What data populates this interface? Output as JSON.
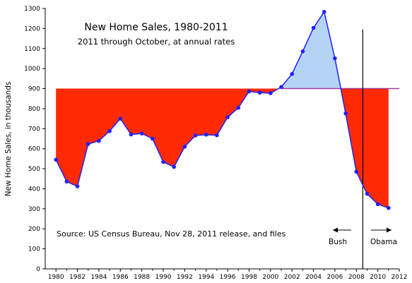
{
  "chart_data": {
    "type": "line",
    "title": "New Home Sales, 1980-2011",
    "subtitle": "2011 through October, at annual rates",
    "xlabel": "",
    "ylabel": "New Home Sales, in thousands",
    "xlim": [
      1979,
      2012
    ],
    "ylim": [
      0,
      1300
    ],
    "x_ticks": [
      1980,
      1982,
      1984,
      1986,
      1988,
      1990,
      1992,
      1994,
      1996,
      1998,
      2000,
      2002,
      2004,
      2006,
      2008,
      2010,
      2012
    ],
    "y_ticks": [
      0,
      100,
      200,
      300,
      400,
      500,
      600,
      700,
      800,
      900,
      1000,
      1100,
      1200,
      1300
    ],
    "x": [
      1980,
      1981,
      1982,
      1983,
      1984,
      1985,
      1986,
      1987,
      1988,
      1989,
      1990,
      1991,
      1992,
      1993,
      1994,
      1995,
      1996,
      1997,
      1998,
      1999,
      2000,
      2001,
      2002,
      2003,
      2004,
      2005,
      2006,
      2007,
      2008,
      2009,
      2010,
      2011
    ],
    "values": [
      545,
      436,
      412,
      623,
      639,
      688,
      750,
      671,
      676,
      650,
      534,
      509,
      610,
      666,
      670,
      667,
      757,
      804,
      886,
      880,
      877,
      908,
      973,
      1086,
      1203,
      1283,
      1051,
      776,
      485,
      375,
      323,
      304
    ],
    "reference_level": 900,
    "divider_year": 2008.6,
    "colors": {
      "line": "#2020ff",
      "above_fill": "#b5d3f5",
      "below_fill": "#ff2a00",
      "reference_line": "#a03c9a",
      "divider": "#000000"
    },
    "grid": false,
    "source_note": "Source:  US Census Bureau, Nov 28, 2011 release, and files",
    "annotations": {
      "bush_label": "Bush",
      "obama_label": "Obama"
    }
  }
}
